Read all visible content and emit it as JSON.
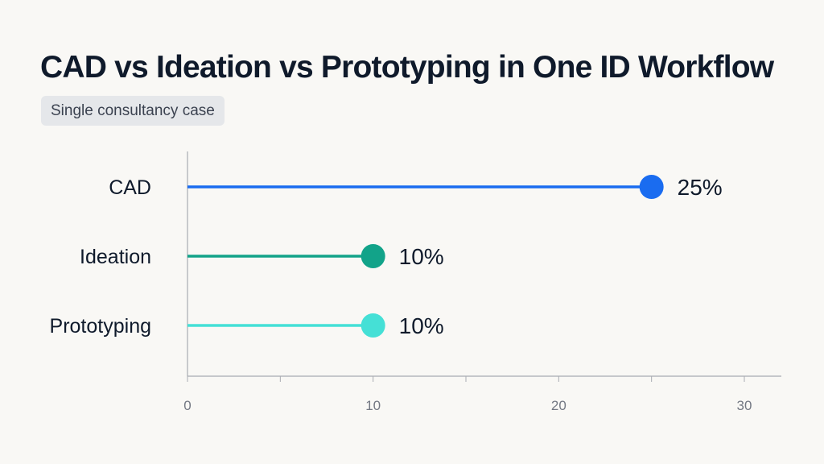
{
  "title": "CAD vs Ideation vs Prototyping in One ID Workflow",
  "subtitle": "Single consultancy case",
  "chart_data": {
    "type": "lollipop",
    "categories": [
      "CAD",
      "Ideation",
      "Prototyping"
    ],
    "values": [
      25,
      10,
      10
    ],
    "value_labels": [
      "25%",
      "10%",
      "10%"
    ],
    "colors": [
      "#1a6cf0",
      "#12a389",
      "#45e0d6"
    ],
    "xlim": [
      0,
      30
    ],
    "x_ticks": [
      0,
      10,
      20,
      30
    ],
    "x_minor_ticks": [
      5,
      15,
      25
    ],
    "grid": false,
    "legend": "none"
  }
}
